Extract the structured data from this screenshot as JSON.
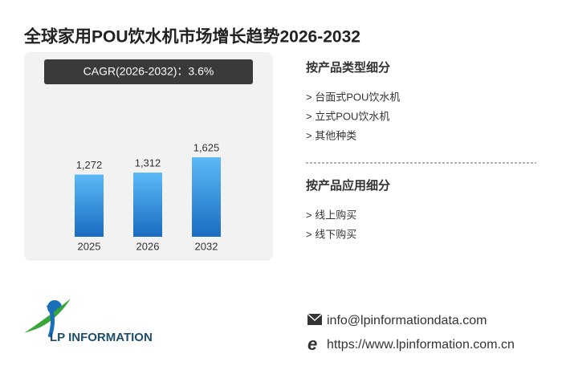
{
  "header": {
    "title": "全球家用POU饮水机市场增长趋势2026-2032"
  },
  "chart_data": {
    "type": "bar",
    "annotation": "CAGR(2026-2032)：3.6%",
    "categories": [
      "2025",
      "2026",
      "2032"
    ],
    "values": [
      1272,
      1312,
      1625
    ],
    "value_labels": [
      "1,272",
      "1,312",
      "1,625"
    ]
  },
  "segments": [
    {
      "title": "按产品类型细分",
      "items": [
        "> 台面式POU饮水机",
        "> 立式POU饮水机",
        "> 其他种类"
      ]
    },
    {
      "title": "按产品应用细分",
      "items": [
        "> 线上购买",
        "> 线下购买"
      ]
    }
  ],
  "logo": {
    "text": "LP INFORMATION"
  },
  "contact": {
    "email": "info@lpinformationdata.com",
    "website": "https://www.lpinformation.com.cn"
  }
}
